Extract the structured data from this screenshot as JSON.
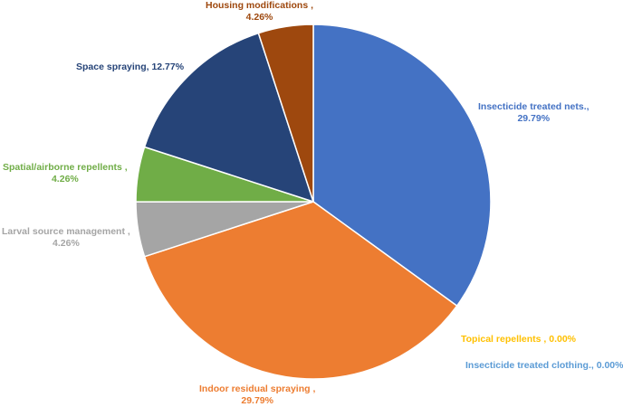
{
  "chart_data": {
    "type": "pie",
    "slices": [
      {
        "label": "Insecticide treated nets.",
        "value": 29.79,
        "color": "#4472C4"
      },
      {
        "label": "Topical repellents",
        "value": 0.0,
        "color": "#FFC000"
      },
      {
        "label": "Insecticide treated clothing.",
        "value": 0.0,
        "color": "#5B9BD5"
      },
      {
        "label": "Indoor residual spraying",
        "value": 29.79,
        "color": "#ED7D31"
      },
      {
        "label": "Larval source management",
        "value": 4.26,
        "color": "#A5A5A5"
      },
      {
        "label": "Spatial/airborne repellents",
        "value": 4.26,
        "color": "#70AD47"
      },
      {
        "label": "Space spraying",
        "value": 12.77,
        "color": "#264478"
      },
      {
        "label": "Housing modifications",
        "value": 4.26,
        "color": "#9E480E"
      }
    ]
  },
  "labels": [
    {
      "line1": "Insecticide treated nets.,",
      "line2": "29.79%",
      "color": "#4472C4"
    },
    {
      "line1": "Topical repellents , 0.00%",
      "line2": "",
      "color": "#FFC000"
    },
    {
      "line1": "Insecticide treated clothing., 0.00%",
      "line2": "",
      "color": "#5B9BD5"
    },
    {
      "line1": "Indoor residual spraying ,",
      "line2": "29.79%",
      "color": "#ED7D31"
    },
    {
      "line1": "Larval source management ,",
      "line2": "4.26%",
      "color": "#A5A5A5"
    },
    {
      "line1": "Spatial/airborne repellents ,",
      "line2": "4.26%",
      "color": "#70AD47"
    },
    {
      "line1": "Space spraying, 12.77%",
      "line2": "",
      "color": "#264478"
    },
    {
      "line1": "Housing modifications ,",
      "line2": "4.26%",
      "color": "#9E480E"
    }
  ]
}
